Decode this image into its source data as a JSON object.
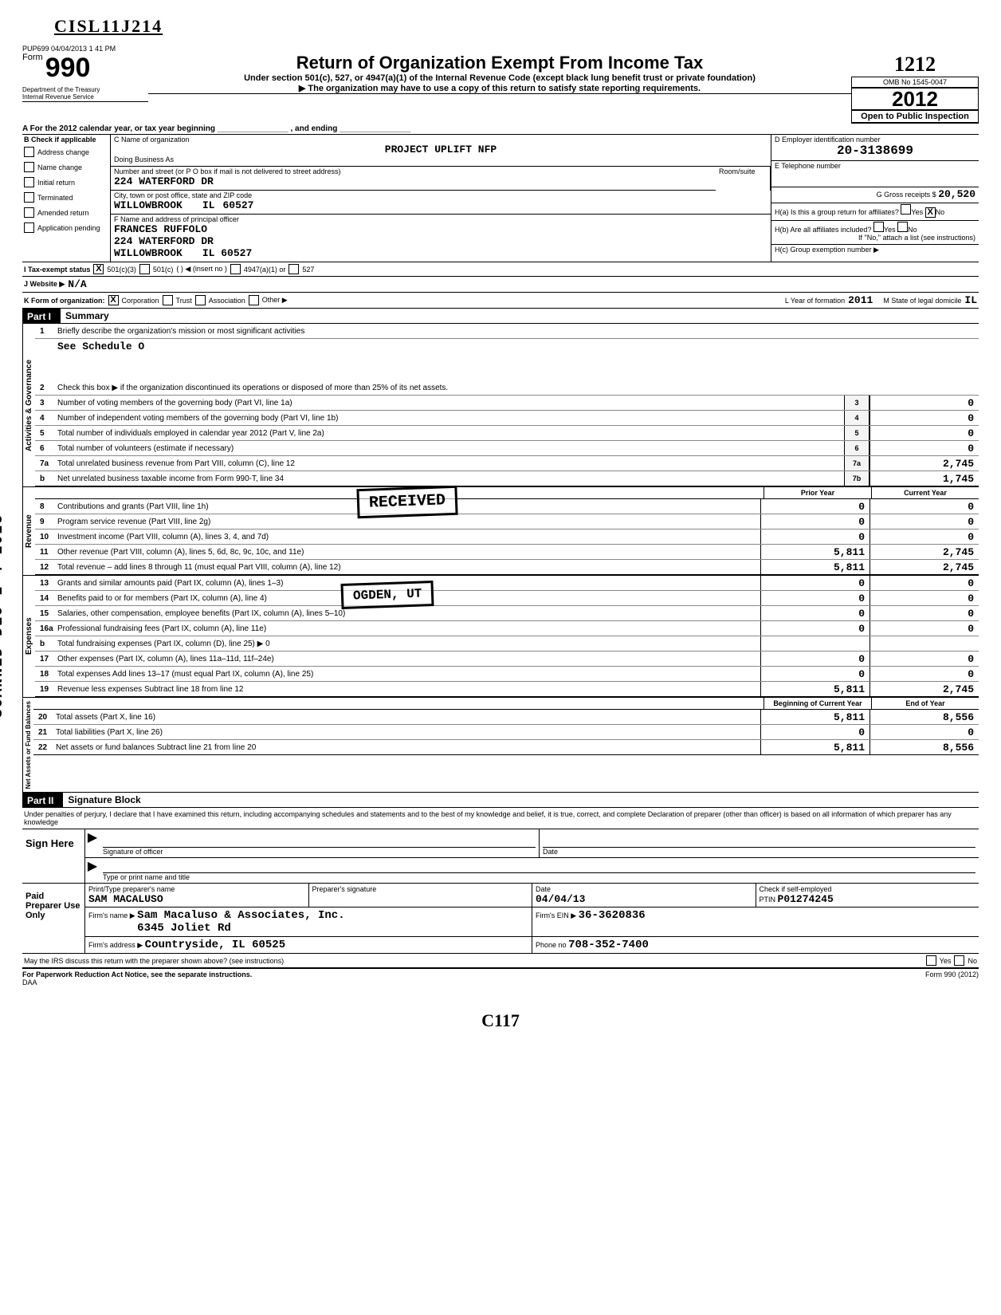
{
  "handwritten_top": "CISL11J214",
  "handwritten_right": "1212",
  "timestamp": "PUP699 04/04/2013 1 41 PM",
  "form_label": "Form",
  "form_number": "990",
  "dept_line1": "Department of the Treasury",
  "dept_line2": "Internal Revenue Service",
  "title_main": "Return of Organization Exempt From Income Tax",
  "title_sub1": "Under section 501(c), 527, or 4947(a)(1) of the Internal Revenue Code (except black lung benefit trust or private foundation)",
  "title_sub2": "▶ The organization may have to use a copy of this return to satisfy state reporting requirements.",
  "omb": "OMB No 1545-0047",
  "year": "2012",
  "open_public": "Open to Public Inspection",
  "row_a": "A   For the 2012 calendar year, or tax year beginning ________________ , and ending ________________",
  "section_b_label": "B",
  "checklabels": {
    "applicable": "Check if applicable",
    "address": "Address change",
    "name": "Name change",
    "initial": "Initial return",
    "terminated": "Terminated",
    "amended": "Amended return",
    "pending": "Application pending"
  },
  "c_name_label": "C  Name of organization",
  "org_name": "PROJECT UPLIFT NFP",
  "dba_label": "Doing Business As",
  "street_label": "Number and street (or P O box if mail is not delivered to street address)",
  "street": "224 WATERFORD DR",
  "city_label": "City, town or post office, state and ZIP code",
  "city": "WILLOWBROOK",
  "state": "IL",
  "zip": "60527",
  "officer_label": "F  Name and address of principal officer",
  "officer_name": "FRANCES RUFFOLO",
  "officer_street": "224 WATERFORD DR",
  "officer_city": "WILLOWBROOK",
  "officer_statezip": "IL  60527",
  "d_label": "D    Employer identification number",
  "ein": "20-3138699",
  "e_label": "E   Telephone number",
  "room_label": "Room/suite",
  "g_label": "G  Gross receipts $",
  "g_val": "20,520",
  "ha_label": "H(a)   Is this a group return for affiliates?",
  "hb_label": "H(b)   Are all affiliates included?",
  "hb_note": "If \"No,\" attach a list (see instructions)",
  "hc_label": "H(c)   Group exemption number ▶",
  "yes": "Yes",
  "no": "No",
  "ha_checked": "X",
  "i_label": "I    Tax-exempt status",
  "i_501c3": "X",
  "i_opts": [
    "501(c)(3)",
    "501(c)",
    "(         ) ◀ (insert no )",
    "4947(a)(1) or",
    "527"
  ],
  "j_label": "J    Website ▶",
  "j_val": "N/A",
  "k_label": "K   Form of organization:",
  "k_corp": "X",
  "k_opts": [
    "Corporation",
    "Trust",
    "Association",
    "Other ▶"
  ],
  "l_label": "L   Year of formation",
  "l_val": "2011",
  "m_label": "M   State of legal domicile",
  "m_val": "IL",
  "part1_label": "Part I",
  "part1_title": "Summary",
  "part2_label": "Part II",
  "part2_title": "Signature Block",
  "scanned": "SCANNED DEC 2 4 2013",
  "vert": {
    "a": "Activities & Governance",
    "b": "Revenue",
    "c": "Expenses",
    "d": "Net Assets or\nFund Balances"
  },
  "line1": "Briefly describe the organization's mission or most significant activities",
  "line1_ans": "See Schedule O",
  "line2": "Check this box ▶        if the organization discontinued its operations or disposed of more than 25% of its net assets.",
  "line3": "Number of voting members of the governing body (Part VI, line 1a)",
  "line4": "Number of independent voting members of the governing body (Part VI, line 1b)",
  "line5": "Total number of individuals employed in calendar year 2012 (Part V, line 2a)",
  "line6": "Total number of volunteers (estimate if necessary)",
  "line7a": "Total unrelated business revenue from Part VIII, column (C), line 12",
  "line7b": "Net unrelated business taxable income from Form 990-T, line 34",
  "vals_small": {
    "3": "0",
    "4": "0",
    "5": "0",
    "6": "0"
  },
  "vals_7a": "2,745",
  "vals_7b": "1,745",
  "hdr_prior": "Prior Year",
  "hdr_curr": "Current Year",
  "rev_lines": [
    {
      "n": "8",
      "t": "Contributions and grants (Part VIII, line 1h)",
      "p": "0",
      "c": "0"
    },
    {
      "n": "9",
      "t": "Program service revenue (Part VIII, line 2g)",
      "p": "0",
      "c": "0"
    },
    {
      "n": "10",
      "t": "Investment income (Part VIII, column (A), lines 3, 4, and 7d)",
      "p": "0",
      "c": "0"
    },
    {
      "n": "11",
      "t": "Other revenue (Part VIII, column (A), lines 5, 6d, 8c, 9c, 10c, and 11e)",
      "p": "5,811",
      "c": "2,745"
    },
    {
      "n": "12",
      "t": "Total revenue – add lines 8 through 11 (must equal Part VIII, column (A), line 12)",
      "p": "5,811",
      "c": "2,745"
    }
  ],
  "exp_lines": [
    {
      "n": "13",
      "t": "Grants and similar amounts paid (Part IX, column (A), lines 1–3)",
      "p": "0",
      "c": "0"
    },
    {
      "n": "14",
      "t": "Benefits paid to or for members (Part IX, column (A), line 4)",
      "p": "0",
      "c": "0"
    },
    {
      "n": "15",
      "t": "Salaries, other compensation, employee benefits (Part IX, column (A), lines 5–10)",
      "p": "0",
      "c": "0"
    },
    {
      "n": "16a",
      "t": "Professional fundraising fees (Part IX, column (A), line 11e)",
      "p": "0",
      "c": "0"
    },
    {
      "n": "b",
      "t": "Total fundraising expenses (Part IX, column (D), line 25) ▶                                   0",
      "p": "",
      "c": ""
    },
    {
      "n": "17",
      "t": "Other expenses (Part IX, column (A), lines 11a–11d, 11f–24e)",
      "p": "0",
      "c": "0"
    },
    {
      "n": "18",
      "t": "Total expenses Add lines 13–17 (must equal Part IX, column (A), line 25)",
      "p": "0",
      "c": "0"
    },
    {
      "n": "19",
      "t": "Revenue less expenses Subtract line 18 from line 12",
      "p": "5,811",
      "c": "2,745"
    }
  ],
  "hdr_boy": "Beginning of Current Year",
  "hdr_eoy": "End of Year",
  "net_lines": [
    {
      "n": "20",
      "t": "Total assets (Part X, line 16)",
      "p": "5,811",
      "c": "8,556"
    },
    {
      "n": "21",
      "t": "Total liabilities (Part X, line 26)",
      "p": "0",
      "c": "0"
    },
    {
      "n": "22",
      "t": "Net assets or fund balances Subtract line 21 from line 20",
      "p": "5,811",
      "c": "8,556"
    }
  ],
  "received_stamp": "RECEIVED",
  "ogden_stamp": "OGDEN, UT",
  "penalty": "Under penalties of perjury, I declare that I have examined this return, including accompanying schedules and statements and to the best of my knowledge and belief, it is true, correct, and complete Declaration of preparer (other than officer) is based on all information of which preparer has any knowledge",
  "sign_here": "Sign Here",
  "sig_officer": "Signature of officer",
  "date_label": "Date",
  "type_name": "Type or print name and title",
  "paid_prep": "Paid Preparer Use Only",
  "prep_name_label": "Print/Type preparer's name",
  "prep_name": "SAM MACALUSO",
  "prep_sig_label": "Preparer's signature",
  "prep_date": "04/04/13",
  "check_self": "Check        if self-employed",
  "ptin_label": "PTIN",
  "ptin": "P01274245",
  "firm_name_label": "Firm's name     ▶",
  "firm_name": "Sam Macaluso & Associates, Inc.",
  "firm_ein_label": "Firm's EIN ▶",
  "firm_ein": "36-3620836",
  "firm_addr_label": "Firm's address  ▶",
  "firm_addr1": "6345 Joliet Rd",
  "firm_addr2": "Countryside, IL   60525",
  "phone_label": "Phone no",
  "phone": "708-352-7400",
  "may_irs": "May the IRS discuss this return with the preparer shown above? (see instructions)",
  "paperwork": "For Paperwork Reduction Act Notice, see the separate instructions.",
  "daa": "DAA",
  "form990": "Form 990 (2012)",
  "bottom_hand": "C117"
}
